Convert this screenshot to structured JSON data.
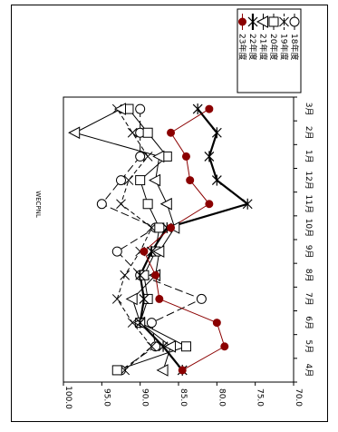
{
  "chart_data": {
    "type": "line",
    "title": "WECPNL",
    "orientation": "rotated-90-clockwise",
    "categories": [
      "4月",
      "5月",
      "6月",
      "7月",
      "8月",
      "9月",
      "10月",
      "11月",
      "12月",
      "1月",
      "2月",
      "3月"
    ],
    "ylim": [
      70.0,
      100.0
    ],
    "yticks": [
      "70.0",
      "75.0",
      "80.0",
      "85.0",
      "90.0",
      "95.0",
      "100.0"
    ],
    "grid": false,
    "legend": "top-right",
    "series": [
      {
        "name": "18年度",
        "marker": "circle-open",
        "color": "#000000",
        "dash": "long-dash",
        "values": [
          92.5,
          88.0,
          88.5,
          82.0,
          90.0,
          93.0,
          88.0,
          95.0,
          92.5,
          90.0,
          90.0,
          90.0
        ]
      },
      {
        "name": "19年度",
        "marker": "x",
        "color": "#000000",
        "dash": "dash",
        "values": [
          92.0,
          88.5,
          91.0,
          93.0,
          92.0,
          90.0,
          88.5,
          92.5,
          91.5,
          89.0,
          91.0,
          93.0
        ]
      },
      {
        "name": "20年度",
        "marker": "square-open",
        "color": "#000000",
        "dash": "solid",
        "values": [
          93.0,
          84.0,
          90.0,
          89.0,
          89.5,
          88.0,
          87.5,
          89.0,
          90.0,
          86.5,
          89.0,
          91.5
        ]
      },
      {
        "name": "21年度",
        "marker": "triangle-open",
        "color": "#000000",
        "dash": "solid",
        "values": [
          87.0,
          86.0,
          90.0,
          91.0,
          88.0,
          87.5,
          85.5,
          86.5,
          88.0,
          87.5,
          98.5,
          92.5
        ]
      },
      {
        "name": "22年度",
        "marker": "asterisk",
        "color": "#000000",
        "dash": "thick",
        "values": [
          84.5,
          87.0,
          90.0,
          89.5,
          90.0,
          88.5,
          86.5,
          76.0,
          80.0,
          81.0,
          80.0,
          82.5
        ]
      },
      {
        "name": "23年度",
        "marker": "dot-filled",
        "color": "#8b0000",
        "dash": "solid",
        "values": [
          84.5,
          79.0,
          80.0,
          87.5,
          88.0,
          89.5,
          86.0,
          81.0,
          83.5,
          84.0,
          86.0,
          81.0
        ]
      }
    ]
  }
}
